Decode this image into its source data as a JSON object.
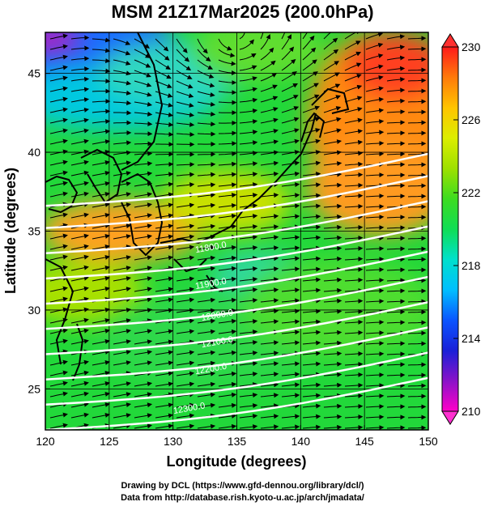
{
  "title": "MSM 21Z17Mar2025 (200.0hPa)",
  "map": {
    "xlabel": "Longitude (degrees)",
    "ylabel": "Latitude  (degrees)",
    "x_ticks": [
      120,
      125,
      130,
      135,
      140,
      145,
      150
    ],
    "y_ticks": [
      25,
      30,
      35,
      40,
      45
    ],
    "xlim": [
      120,
      150
    ],
    "ylim": [
      22.4,
      47.6
    ],
    "contour_labels": [
      {
        "text": "11800.0",
        "lon": 133.0,
        "lat": 33.8
      },
      {
        "text": "11900.0",
        "lon": 133.0,
        "lat": 31.5
      },
      {
        "text": "12000.0",
        "lon": 133.5,
        "lat": 29.5
      },
      {
        "text": "12100.0",
        "lon": 133.5,
        "lat": 27.8
      },
      {
        "text": "12200.0",
        "lon": 133.0,
        "lat": 26.1
      },
      {
        "text": "12300.0",
        "lon": 131.3,
        "lat": 23.6
      }
    ],
    "grid": true,
    "overlay": "wind streamlines with arrows"
  },
  "colorbar": {
    "ticks": [
      210,
      214,
      218,
      222,
      226,
      230
    ],
    "min": 210,
    "max": 230,
    "palette": [
      "#ff00c8",
      "#8a12c8",
      "#1a20d8",
      "#0a55ff",
      "#00bfff",
      "#00e0cc",
      "#10dd55",
      "#3ddc20",
      "#9ee000",
      "#dcee00",
      "#ffc400",
      "#ff7a0a",
      "#ff1a1a"
    ]
  },
  "credits": [
    "Drawing by DCL (https://www.gfd-dennou.org/library/dcl/)",
    "Data from http://database.rish.kyoto-u.ac.jp/arch/jmadata/"
  ]
}
